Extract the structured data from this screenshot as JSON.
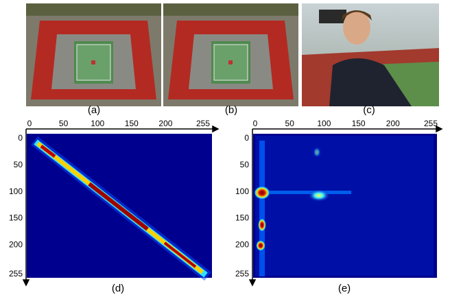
{
  "panels": [
    {
      "label": "(a)"
    },
    {
      "label": "(b)"
    },
    {
      "label": "(c)"
    }
  ],
  "plots": [
    {
      "label": "(d)",
      "xticks": [
        0,
        50,
        100,
        150,
        200,
        255
      ],
      "yticks": [
        0,
        50,
        100,
        150,
        200,
        255
      ]
    },
    {
      "label": "(e)",
      "xticks": [
        0,
        50,
        100,
        150,
        200,
        255
      ],
      "yticks": [
        0,
        50,
        100,
        150,
        200,
        255
      ]
    }
  ]
}
